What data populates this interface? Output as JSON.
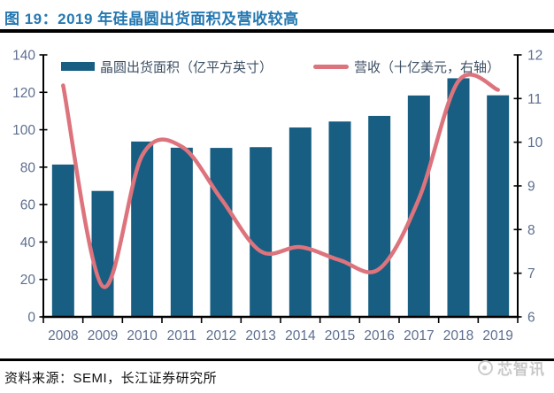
{
  "title": "图 19：2019 年硅晶圆出货面积及营收较高",
  "footer": {
    "source": "资料来源：SEMI，长江证券研究所",
    "watermark": "芯智讯"
  },
  "colors": {
    "title_blue": "#2478B2",
    "bar_blue": "#175E82",
    "line_red": "#DD737C",
    "axis_label": "#5D6F90",
    "legend_text": "#3E5065",
    "axis_line": "#000000",
    "watermark_gray": "#C6C6C6"
  },
  "chart_data": {
    "type": "bar",
    "subtype": "bar+line-combo",
    "categories": [
      "2008",
      "2009",
      "2010",
      "2011",
      "2012",
      "2013",
      "2014",
      "2015",
      "2016",
      "2017",
      "2018",
      "2019"
    ],
    "series": [
      {
        "name": "晶圆出货面积（亿平方英寸）",
        "type": "bar",
        "axis": "left",
        "color": "#175E82",
        "values": [
          81.4,
          67.3,
          93.7,
          90.4,
          90.3,
          90.7,
          101.2,
          104.4,
          107.4,
          118.3,
          127.5,
          118.4
        ]
      },
      {
        "name": "营收（十亿美元，右轴）",
        "type": "line",
        "axis": "right",
        "color": "#DD737C",
        "values": [
          11.3,
          6.7,
          9.7,
          9.9,
          8.7,
          7.5,
          7.6,
          7.3,
          7.1,
          8.7,
          11.4,
          11.2
        ]
      }
    ],
    "left_axis": {
      "min": 0,
      "max": 140,
      "step": 20,
      "ticks": [
        0,
        20,
        40,
        60,
        80,
        100,
        120,
        140
      ]
    },
    "right_axis": {
      "min": 6,
      "max": 12,
      "step": 1,
      "ticks": [
        6,
        7,
        8,
        9,
        10,
        11,
        12
      ]
    },
    "grid": false,
    "legend_position": "top-inside",
    "line_smooth": true
  }
}
